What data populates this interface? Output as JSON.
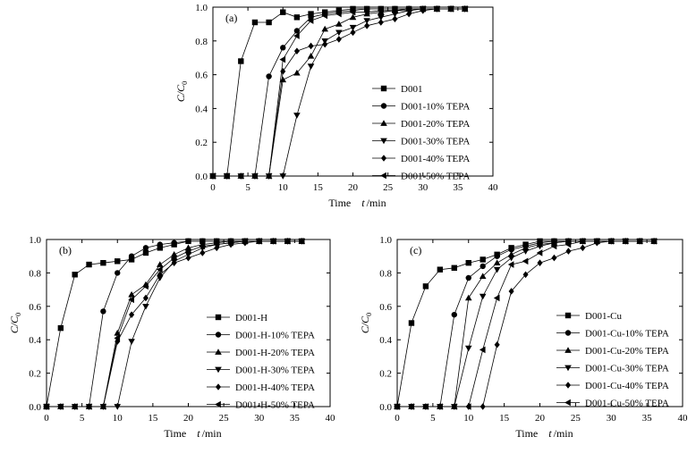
{
  "chart_data": [
    {
      "type": "line",
      "panel_label": "(a)",
      "xlabel_prefix": "Time",
      "xlabel_var": "t",
      "xlabel_unit": "/min",
      "ylabel_main": "C/C",
      "ylabel_sub": "0",
      "xlim": [
        0,
        40
      ],
      "ylim": [
        0,
        1.0
      ],
      "xticks": [
        0,
        5,
        10,
        15,
        20,
        25,
        30,
        35,
        40
      ],
      "yticks": [
        0.0,
        0.2,
        0.4,
        0.6,
        0.8,
        1.0
      ],
      "legend_position": "center-right",
      "series": [
        {
          "name": "D001",
          "marker": "square",
          "x": [
            0,
            2,
            4,
            6,
            8,
            10,
            12,
            14,
            16,
            18,
            20,
            22,
            24,
            26,
            28,
            30,
            32,
            34,
            36
          ],
          "y": [
            0,
            0,
            0.68,
            0.91,
            0.91,
            0.97,
            0.94,
            0.96,
            0.97,
            0.98,
            0.99,
            0.99,
            0.99,
            0.99,
            0.99,
            0.99,
            0.99,
            0.99,
            0.99
          ]
        },
        {
          "name": "D001-10% TEPA",
          "marker": "circle",
          "x": [
            0,
            2,
            4,
            6,
            8,
            10,
            12,
            14,
            16,
            18,
            20,
            22,
            24,
            26,
            28,
            30,
            32,
            34,
            36
          ],
          "y": [
            0,
            0,
            0,
            0,
            0.59,
            0.76,
            0.86,
            0.94,
            0.96,
            0.97,
            0.98,
            0.99,
            0.99,
            0.99,
            0.99,
            0.99,
            0.99,
            0.99,
            0.99
          ]
        },
        {
          "name": "D001-20% TEPA",
          "marker": "triangle-up",
          "x": [
            0,
            2,
            4,
            6,
            8,
            10,
            12,
            14,
            16,
            18,
            20,
            22,
            24,
            26,
            28,
            30,
            32,
            34,
            36
          ],
          "y": [
            0,
            0,
            0,
            0,
            0,
            0.57,
            0.61,
            0.71,
            0.87,
            0.9,
            0.94,
            0.96,
            0.97,
            0.98,
            0.99,
            0.99,
            0.99,
            0.99,
            0.99
          ]
        },
        {
          "name": "D001-30% TEPA",
          "marker": "triangle-down",
          "x": [
            0,
            2,
            4,
            6,
            8,
            10,
            12,
            14,
            16,
            18,
            20,
            22,
            24,
            26,
            28,
            30,
            32,
            34,
            36
          ],
          "y": [
            0,
            0,
            0,
            0,
            0,
            0,
            0.36,
            0.65,
            0.8,
            0.85,
            0.88,
            0.92,
            0.94,
            0.96,
            0.98,
            0.99,
            0.99,
            0.99,
            0.99
          ]
        },
        {
          "name": "D001-40% TEPA",
          "marker": "diamond",
          "x": [
            0,
            2,
            4,
            6,
            8,
            10,
            12,
            14,
            16,
            18,
            20,
            22,
            24,
            26,
            28,
            30,
            32,
            34,
            36
          ],
          "y": [
            0,
            0,
            0,
            0,
            0,
            0.62,
            0.74,
            0.77,
            0.78,
            0.81,
            0.85,
            0.89,
            0.91,
            0.93,
            0.96,
            0.98,
            0.99,
            0.99,
            0.99
          ]
        },
        {
          "name": "D001-50% TEPA",
          "marker": "triangle-left",
          "x": [
            0,
            2,
            4,
            6,
            8,
            10,
            12,
            14,
            16,
            18,
            20,
            22,
            24,
            26,
            28,
            30,
            32,
            34,
            36
          ],
          "y": [
            0,
            0,
            0,
            0,
            0,
            0.69,
            0.83,
            0.92,
            0.95,
            0.96,
            0.97,
            0.97,
            0.98,
            0.98,
            0.98,
            0.99,
            0.99,
            0.99,
            0.99
          ]
        }
      ]
    },
    {
      "type": "line",
      "panel_label": "(b)",
      "xlabel_prefix": "Time",
      "xlabel_var": "t",
      "xlabel_unit": "/min",
      "ylabel_main": "C/C",
      "ylabel_sub": "0",
      "xlim": [
        0,
        40
      ],
      "ylim": [
        0,
        1.0
      ],
      "xticks": [
        0,
        5,
        10,
        15,
        20,
        25,
        30,
        35,
        40
      ],
      "yticks": [
        0.0,
        0.2,
        0.4,
        0.6,
        0.8,
        1.0
      ],
      "legend_position": "center-right",
      "series": [
        {
          "name": "D001-H",
          "marker": "square",
          "x": [
            0,
            2,
            4,
            6,
            8,
            10,
            12,
            14,
            16,
            18,
            20,
            22,
            24,
            26,
            28,
            30,
            32,
            34,
            36
          ],
          "y": [
            0,
            0.47,
            0.79,
            0.85,
            0.86,
            0.87,
            0.88,
            0.92,
            0.95,
            0.97,
            0.99,
            0.99,
            0.99,
            0.99,
            0.99,
            0.99,
            0.99,
            0.99,
            0.99
          ]
        },
        {
          "name": "D001-H-10% TEPA",
          "marker": "circle",
          "x": [
            0,
            2,
            4,
            6,
            8,
            10,
            12,
            14,
            16,
            18,
            20,
            22,
            24,
            26,
            28,
            30,
            32,
            34,
            36
          ],
          "y": [
            0,
            0,
            0,
            0,
            0.57,
            0.8,
            0.9,
            0.95,
            0.97,
            0.98,
            0.99,
            0.99,
            0.99,
            0.99,
            0.99,
            0.99,
            0.99,
            0.99,
            0.99
          ]
        },
        {
          "name": "D001-H-20% TEPA",
          "marker": "triangle-up",
          "x": [
            0,
            2,
            4,
            6,
            8,
            10,
            12,
            14,
            16,
            18,
            20,
            22,
            24,
            26,
            28,
            30,
            32,
            34,
            36
          ],
          "y": [
            0,
            0,
            0,
            0,
            0,
            0.44,
            0.67,
            0.73,
            0.85,
            0.91,
            0.95,
            0.97,
            0.98,
            0.99,
            0.99,
            0.99,
            0.99,
            0.99,
            0.99
          ]
        },
        {
          "name": "D001-H-30% TEPA",
          "marker": "triangle-down",
          "x": [
            0,
            2,
            4,
            6,
            8,
            10,
            12,
            14,
            16,
            18,
            20,
            22,
            24,
            26,
            28,
            30,
            32,
            34,
            36
          ],
          "y": [
            0,
            0,
            0,
            0,
            0,
            0,
            0.39,
            0.6,
            0.77,
            0.87,
            0.91,
            0.95,
            0.97,
            0.98,
            0.99,
            0.99,
            0.99,
            0.99,
            0.99
          ]
        },
        {
          "name": "D001-H-40% TEPA",
          "marker": "diamond",
          "x": [
            0,
            2,
            4,
            6,
            8,
            10,
            12,
            14,
            16,
            18,
            20,
            22,
            24,
            26,
            28,
            30,
            32,
            34,
            36
          ],
          "y": [
            0,
            0,
            0,
            0,
            0,
            0.39,
            0.55,
            0.65,
            0.79,
            0.86,
            0.89,
            0.92,
            0.95,
            0.97,
            0.98,
            0.99,
            0.99,
            0.99,
            0.99
          ]
        },
        {
          "name": "D001-H-50% TEPA",
          "marker": "triangle-left",
          "x": [
            0,
            2,
            4,
            6,
            8,
            10,
            12,
            14,
            16,
            18,
            20,
            22,
            24,
            26,
            28,
            30,
            32,
            34,
            36
          ],
          "y": [
            0,
            0,
            0,
            0,
            0,
            0.41,
            0.64,
            0.72,
            0.82,
            0.89,
            0.93,
            0.96,
            0.97,
            0.98,
            0.99,
            0.99,
            0.99,
            0.99,
            0.99
          ]
        }
      ]
    },
    {
      "type": "line",
      "panel_label": "(c)",
      "xlabel_prefix": "Time",
      "xlabel_var": "t",
      "xlabel_unit": "/min",
      "ylabel_main": "C/C",
      "ylabel_sub": "0",
      "xlim": [
        0,
        40
      ],
      "ylim": [
        0,
        1.0
      ],
      "xticks": [
        0,
        5,
        10,
        15,
        20,
        25,
        30,
        35,
        40
      ],
      "yticks": [
        0.0,
        0.2,
        0.4,
        0.6,
        0.8,
        1.0
      ],
      "legend_position": "center-right",
      "series": [
        {
          "name": "D001-Cu",
          "marker": "square",
          "x": [
            0,
            2,
            4,
            6,
            8,
            10,
            12,
            14,
            16,
            18,
            20,
            22,
            24,
            26,
            28,
            30,
            32,
            34,
            36
          ],
          "y": [
            0,
            0.5,
            0.72,
            0.82,
            0.83,
            0.86,
            0.88,
            0.91,
            0.95,
            0.97,
            0.99,
            0.99,
            0.99,
            0.99,
            0.99,
            0.99,
            0.99,
            0.99,
            0.99
          ]
        },
        {
          "name": "D001-Cu-10% TEPA",
          "marker": "circle",
          "x": [
            0,
            2,
            4,
            6,
            8,
            10,
            12,
            14,
            16,
            18,
            20,
            22,
            24,
            26,
            28,
            30,
            32,
            34,
            36
          ],
          "y": [
            0,
            0,
            0,
            0,
            0.55,
            0.77,
            0.84,
            0.9,
            0.94,
            0.96,
            0.98,
            0.99,
            0.99,
            0.99,
            0.99,
            0.99,
            0.99,
            0.99,
            0.99
          ]
        },
        {
          "name": "D001-Cu-20% TEPA",
          "marker": "triangle-up",
          "x": [
            0,
            2,
            4,
            6,
            8,
            10,
            12,
            14,
            16,
            18,
            20,
            22,
            24,
            26,
            28,
            30,
            32,
            34,
            36
          ],
          "y": [
            0,
            0,
            0,
            0,
            0,
            0.65,
            0.78,
            0.86,
            0.91,
            0.95,
            0.97,
            0.98,
            0.99,
            0.99,
            0.99,
            0.99,
            0.99,
            0.99,
            0.99
          ]
        },
        {
          "name": "D001-Cu-30% TEPA",
          "marker": "triangle-down",
          "x": [
            0,
            2,
            4,
            6,
            8,
            10,
            12,
            14,
            16,
            18,
            20,
            22,
            24,
            26,
            28,
            30,
            32,
            34,
            36
          ],
          "y": [
            0,
            0,
            0,
            0,
            0,
            0.35,
            0.66,
            0.82,
            0.89,
            0.93,
            0.96,
            0.98,
            0.99,
            0.99,
            0.99,
            0.99,
            0.99,
            0.99,
            0.99
          ]
        },
        {
          "name": "D001-Cu-40% TEPA",
          "marker": "diamond",
          "x": [
            0,
            2,
            4,
            6,
            8,
            10,
            12,
            14,
            16,
            18,
            20,
            22,
            24,
            26,
            28,
            30,
            32,
            34,
            36
          ],
          "y": [
            0,
            0,
            0,
            0,
            0,
            0,
            0,
            0.37,
            0.69,
            0.79,
            0.86,
            0.89,
            0.93,
            0.95,
            0.98,
            0.99,
            0.99,
            0.99,
            0.99
          ]
        },
        {
          "name": "D001-Cu-50% TEPA",
          "marker": "triangle-left",
          "x": [
            0,
            2,
            4,
            6,
            8,
            10,
            12,
            14,
            16,
            18,
            20,
            22,
            24,
            26,
            28,
            30,
            32,
            34,
            36
          ],
          "y": [
            0,
            0,
            0,
            0,
            0,
            0,
            0.34,
            0.65,
            0.85,
            0.87,
            0.92,
            0.96,
            0.97,
            0.99,
            0.99,
            0.99,
            0.99,
            0.99,
            0.99
          ]
        }
      ]
    }
  ]
}
